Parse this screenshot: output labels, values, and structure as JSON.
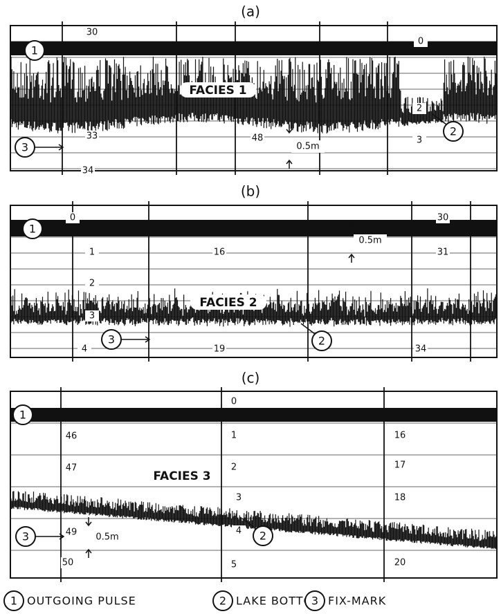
{
  "panels": [
    {
      "label": "(a)",
      "facies": "FACIES 1",
      "scale": "0.5m",
      "markers": [
        "1",
        "2",
        "3"
      ],
      "depth_labels": [
        "30",
        "0",
        "2",
        "33",
        "48",
        "3",
        "34"
      ]
    },
    {
      "label": "(b)",
      "facies": "FACIES 2",
      "scale": "0.5m",
      "markers": [
        "1",
        "3",
        "2"
      ],
      "depth_labels": [
        "0",
        "30",
        "1",
        "16",
        "31",
        "2",
        "3",
        "4",
        "19",
        "34"
      ]
    },
    {
      "label": "(c)",
      "facies": "FACIES 3",
      "scale": "0.5m",
      "markers": [
        "1",
        "3",
        "2"
      ],
      "depth_labels": [
        "0",
        "46",
        "1",
        "16",
        "47",
        "2",
        "17",
        "3",
        "18",
        "49",
        "4",
        "50",
        "5",
        "20"
      ]
    }
  ],
  "legend": [
    {
      "number": "1",
      "text": "OUTGOING PULSE"
    },
    {
      "number": "2",
      "text": "LAKE BOTTOM"
    },
    {
      "number": "3",
      "text": "FIX-MARK"
    }
  ]
}
